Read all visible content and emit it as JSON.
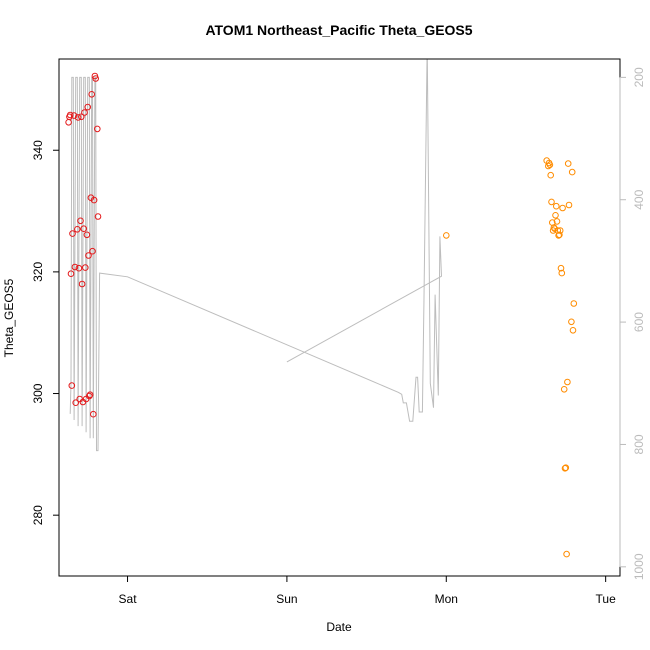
{
  "chart_data": {
    "type": "scatter",
    "title": "ATOM1 Northeast_Pacific Theta_GEOS5",
    "xlabel": "Date",
    "ylabel": "Theta_GEOS5",
    "x_ticks": [
      "Sat",
      "Sun",
      "Mon",
      "Tue"
    ],
    "x_tick_positions_days": [
      0,
      1,
      2,
      3
    ],
    "xlim_days": [
      -0.43,
      3.09
    ],
    "ylim": [
      270,
      355
    ],
    "y_ticks": [
      "280",
      "300",
      "320",
      "340"
    ],
    "y_tick_values": [
      280,
      300,
      320,
      340
    ],
    "y2_ticks": [
      "200",
      "400",
      "600",
      "800",
      "1000"
    ],
    "y2_tick_values": [
      200,
      400,
      600,
      800,
      1000
    ],
    "y2lim_inverted": [
      1015,
      170
    ],
    "grid": false,
    "colors": {
      "series1": "#e41a1c",
      "series2": "#ff8c00",
      "pressure_line": "#bdbdbd",
      "axis": "#000000",
      "y2_axis": "#bbbbbb"
    },
    "series": [
      {
        "color": "#e41a1c",
        "points": [
          [
            -0.37,
            344.6
          ],
          [
            -0.365,
            345.5
          ],
          [
            -0.36,
            345.8
          ],
          [
            -0.355,
            319.7
          ],
          [
            -0.35,
            301.3
          ],
          [
            -0.345,
            326.3
          ],
          [
            -0.335,
            345.7
          ],
          [
            -0.33,
            320.8
          ],
          [
            -0.325,
            298.5
          ],
          [
            -0.315,
            327.0
          ],
          [
            -0.31,
            345.4
          ],
          [
            -0.305,
            320.6
          ],
          [
            -0.3,
            299.1
          ],
          [
            -0.295,
            328.4
          ],
          [
            -0.29,
            345.5
          ],
          [
            -0.285,
            318.0
          ],
          [
            -0.28,
            298.6
          ],
          [
            -0.275,
            327.1
          ],
          [
            -0.27,
            346.2
          ],
          [
            -0.265,
            320.7
          ],
          [
            -0.26,
            299.1
          ],
          [
            -0.255,
            326.1
          ],
          [
            -0.25,
            347.1
          ],
          [
            -0.245,
            322.7
          ],
          [
            -0.24,
            299.6
          ],
          [
            -0.235,
            299.8
          ],
          [
            -0.23,
            332.2
          ],
          [
            -0.225,
            349.2
          ],
          [
            -0.22,
            323.4
          ],
          [
            -0.215,
            296.6
          ],
          [
            -0.21,
            331.8
          ],
          [
            -0.205,
            352.2
          ],
          [
            -0.2,
            351.8
          ],
          [
            -0.19,
            343.5
          ],
          [
            -0.185,
            329.1
          ]
        ]
      },
      {
        "color": "#ff8c00",
        "points": [
          [
            2.0,
            326.0
          ],
          [
            2.63,
            338.3
          ],
          [
            2.64,
            337.4
          ],
          [
            2.645,
            337.9
          ],
          [
            2.65,
            337.6
          ],
          [
            2.655,
            335.9
          ],
          [
            2.66,
            331.5
          ],
          [
            2.665,
            328.1
          ],
          [
            2.67,
            326.8
          ],
          [
            2.675,
            327.3
          ],
          [
            2.68,
            327.1
          ],
          [
            2.685,
            329.3
          ],
          [
            2.69,
            330.8
          ],
          [
            2.695,
            328.3
          ],
          [
            2.7,
            326.8
          ],
          [
            2.705,
            326.0
          ],
          [
            2.71,
            326.1
          ],
          [
            2.715,
            326.8
          ],
          [
            2.72,
            320.6
          ],
          [
            2.725,
            319.8
          ],
          [
            2.73,
            330.5
          ],
          [
            2.74,
            300.7
          ],
          [
            2.745,
            287.7
          ],
          [
            2.75,
            287.8
          ],
          [
            2.755,
            273.6
          ],
          [
            2.76,
            301.9
          ],
          [
            2.765,
            337.8
          ],
          [
            2.77,
            331.0
          ],
          [
            2.785,
            311.8
          ],
          [
            2.79,
            336.4
          ],
          [
            2.795,
            310.4
          ],
          [
            2.8,
            314.8
          ]
        ]
      }
    ],
    "pressure_line": [
      [
        -0.36,
        750
      ],
      [
        -0.355,
        700
      ],
      [
        -0.35,
        200
      ],
      [
        -0.34,
        200
      ],
      [
        -0.335,
        760
      ],
      [
        -0.325,
        200
      ],
      [
        -0.315,
        200
      ],
      [
        -0.31,
        770
      ],
      [
        -0.3,
        200
      ],
      [
        -0.29,
        200
      ],
      [
        -0.285,
        770
      ],
      [
        -0.275,
        200
      ],
      [
        -0.265,
        200
      ],
      [
        -0.26,
        780
      ],
      [
        -0.25,
        200
      ],
      [
        -0.24,
        200
      ],
      [
        -0.235,
        790
      ],
      [
        -0.225,
        200
      ],
      [
        -0.22,
        200
      ],
      [
        -0.215,
        790
      ],
      [
        -0.205,
        200
      ],
      [
        -0.2,
        200
      ],
      [
        -0.195,
        810
      ],
      [
        -0.185,
        810
      ],
      [
        -0.175,
        520
      ],
      [
        0.0,
        526
      ],
      [
        1.7,
        715
      ],
      [
        1.72,
        718
      ],
      [
        1.73,
        732
      ],
      [
        1.75,
        732
      ],
      [
        1.77,
        762
      ],
      [
        1.79,
        762
      ],
      [
        1.81,
        690
      ],
      [
        1.82,
        690
      ],
      [
        1.83,
        747
      ],
      [
        1.85,
        747
      ],
      [
        1.86,
        560
      ],
      [
        1.88,
        145
      ],
      [
        1.9,
        700
      ],
      [
        1.92,
        740
      ],
      [
        1.93,
        555
      ],
      [
        1.95,
        720
      ],
      [
        1.96,
        460
      ],
      [
        1.97,
        525
      ],
      [
        1.0,
        665
      ]
    ]
  }
}
